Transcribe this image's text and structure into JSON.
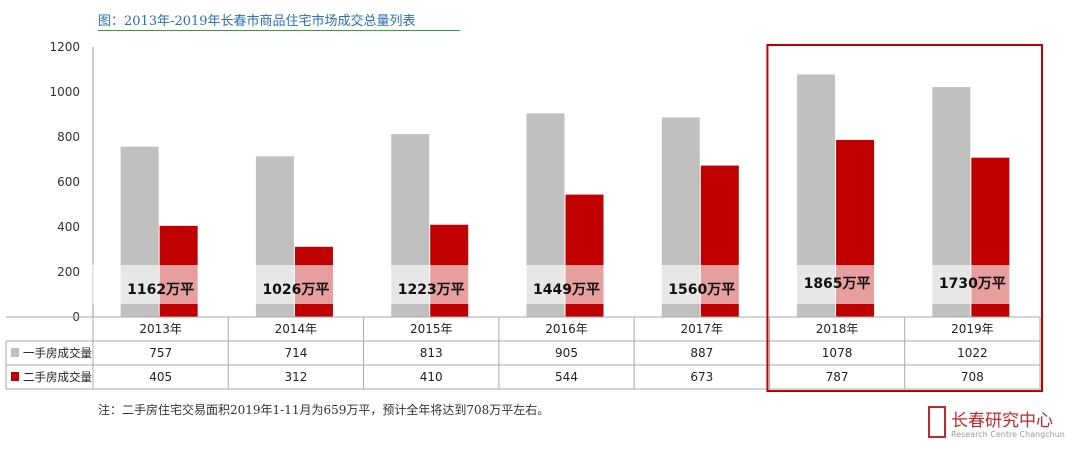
{
  "title": "图：2013年-2019年长春市商品住宅市场成交总量列表",
  "note": "注：二手房住宅交易面积2019年1-11月为659万平，预计全年将达到708万平左右。",
  "logo": {
    "name": "长春研究中心",
    "sub": "Research Centre Changchun"
  },
  "colors": {
    "new": "#c0c0c0",
    "second": "#c00000",
    "highlight": "#c00000",
    "title": "#2a6fb5"
  },
  "chart_data": {
    "type": "bar",
    "categories": [
      "2013年",
      "2014年",
      "2015年",
      "2016年",
      "2017年",
      "2018年",
      "2019年"
    ],
    "series": [
      {
        "name": "一手房成交量",
        "values": [
          757,
          714,
          813,
          905,
          887,
          1078,
          1022
        ]
      },
      {
        "name": "二手房成交量",
        "values": [
          405,
          312,
          410,
          544,
          673,
          787,
          708
        ]
      }
    ],
    "totals": [
      "1162万平",
      "1026万平",
      "1223万平",
      "1449万平",
      "1560万平",
      "1865万平",
      "1730万平"
    ],
    "yticks": [
      0,
      200,
      400,
      600,
      800,
      1000,
      1200
    ],
    "ylim": [
      0,
      1200
    ],
    "highlight_categories": [
      "2018年",
      "2019年"
    ],
    "legend": "table-rows"
  }
}
